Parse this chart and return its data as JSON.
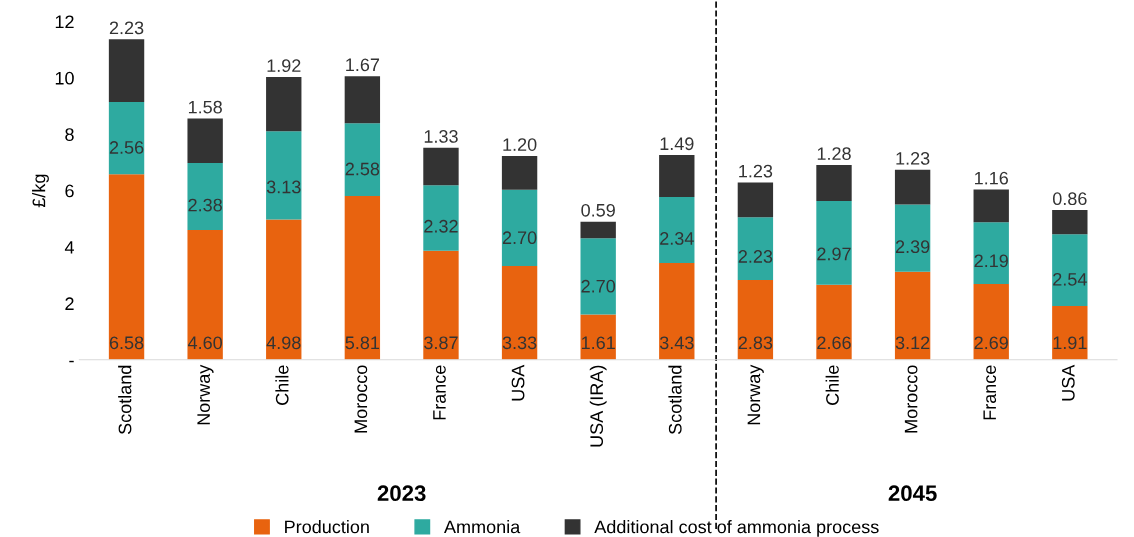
{
  "chart_data": {
    "type": "bar",
    "stacked": true,
    "ylabel": "£/kg",
    "categories": [
      "Scotland",
      "Norway",
      "Chile",
      "Morocco",
      "France",
      "USA",
      "USA (IRA)",
      "Scotland",
      "Norway",
      "Chile",
      "Morocco",
      "France",
      "USA"
    ],
    "series": [
      {
        "name": "Production",
        "color": "#e8630f",
        "values": [
          6.58,
          4.6,
          4.98,
          5.81,
          3.87,
          3.33,
          1.61,
          3.43,
          2.83,
          2.66,
          3.12,
          2.69,
          1.91
        ],
        "value_labels": [
          "6.58",
          "4.60",
          "4.98",
          "5.81",
          "3.87",
          "3.33",
          "1.61",
          "3.43",
          "2.83",
          "2.66",
          "3.12",
          "2.69",
          "1.91"
        ]
      },
      {
        "name": "Ammonia",
        "color": "#2eaaa0",
        "values": [
          2.56,
          2.38,
          3.13,
          2.58,
          2.32,
          2.7,
          2.7,
          2.34,
          2.23,
          2.97,
          2.39,
          2.19,
          2.54
        ],
        "value_labels": [
          "2.56",
          "2.38",
          "3.13",
          "2.58",
          "2.32",
          "2.70",
          "2.70",
          "2.34",
          "2.23",
          "2.97",
          "2.39",
          "2.19",
          "2.54"
        ]
      },
      {
        "name": "Additional cost of ammonia process",
        "color": "#333333",
        "values": [
          2.23,
          1.58,
          1.92,
          1.67,
          1.33,
          1.2,
          0.59,
          1.49,
          1.23,
          1.28,
          1.23,
          1.16,
          0.86
        ],
        "value_labels": [
          "2.23",
          "1.58",
          "1.92",
          "1.67",
          "1.33",
          "1.20",
          "0.59",
          "1.49",
          "1.23",
          "1.28",
          "1.23",
          "1.16",
          "0.86"
        ]
      }
    ],
    "ylim": [
      0,
      12
    ],
    "yticks": [
      {
        "value": 0,
        "label": "-"
      },
      2,
      4,
      6,
      8,
      10,
      12
    ],
    "annotations": [
      "2023",
      "2045"
    ],
    "grid": false,
    "legend": "bottom"
  }
}
